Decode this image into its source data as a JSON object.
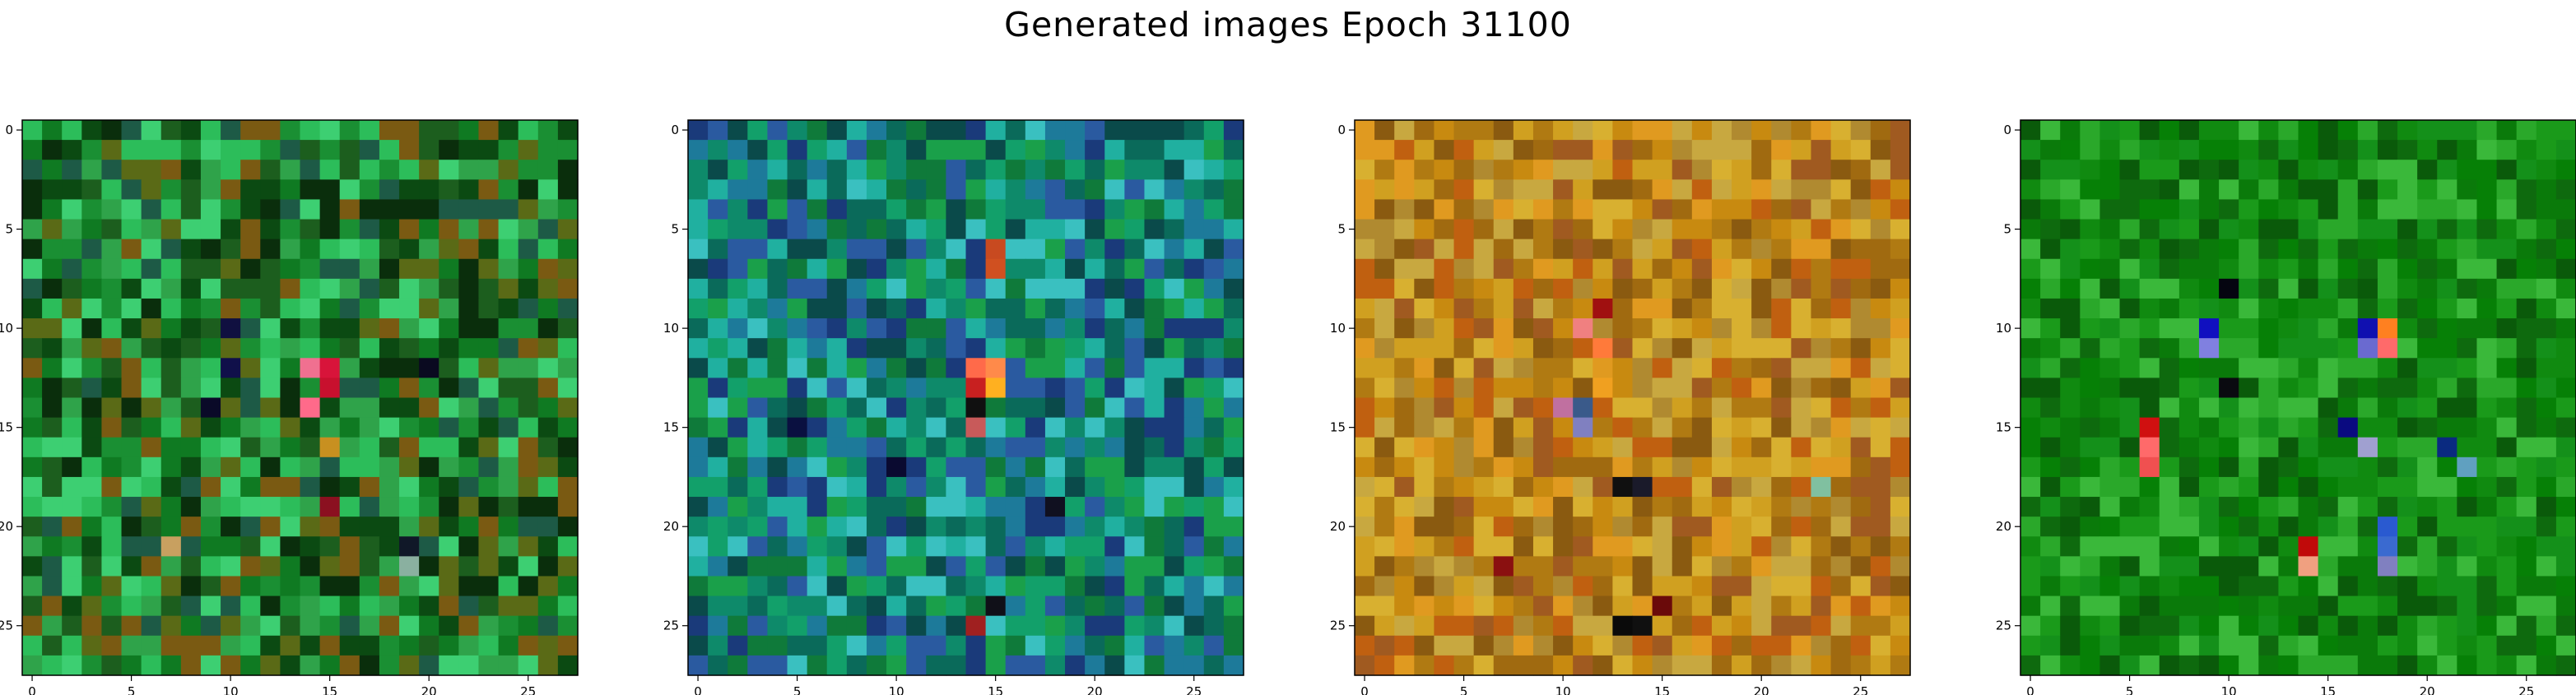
{
  "figure": {
    "title": "Generated images Epoch 31100"
  },
  "chart_data": {
    "type": "heatmap",
    "title": "Generated images Epoch 31100",
    "grid": false,
    "panels": [
      {
        "name": "",
        "xlim": [
          -0.5,
          27.5
        ],
        "ylim": [
          27.5,
          -0.5
        ],
        "xticks": [
          0,
          5,
          10,
          15,
          20,
          25
        ],
        "yticks": [
          0,
          5,
          10,
          15,
          20,
          25
        ],
        "palette": [
          "#0b4a12",
          "#0f7a22",
          "#1a8f33",
          "#2fa34a",
          "#2cbd5a",
          "#3dcf72",
          "#0a2e0c",
          "#1c5e1e",
          "#5a6a16",
          "#7a5a12",
          "#1d5a46"
        ],
        "highlights": [
          {
            "x": 15,
            "y": 12,
            "color": "#d8143a"
          },
          {
            "x": 15,
            "y": 13,
            "color": "#c8102e"
          },
          {
            "x": 14,
            "y": 12,
            "color": "#f07090"
          },
          {
            "x": 14,
            "y": 14,
            "color": "#ff6a8a"
          },
          {
            "x": 15,
            "y": 19,
            "color": "#8b1020"
          },
          {
            "x": 9,
            "y": 14,
            "color": "#0a0a28"
          },
          {
            "x": 10,
            "y": 12,
            "color": "#10104a"
          },
          {
            "x": 19,
            "y": 21,
            "color": "#101828"
          },
          {
            "x": 7,
            "y": 21,
            "color": "#c8a060"
          },
          {
            "x": 10,
            "y": 10,
            "color": "#101040"
          },
          {
            "x": 20,
            "y": 12,
            "color": "#0a0a20"
          },
          {
            "x": 15,
            "y": 16,
            "color": "#c89020"
          },
          {
            "x": 19,
            "y": 22,
            "color": "#8ab0a0"
          }
        ]
      },
      {
        "name": "",
        "xlim": [
          -0.5,
          27.5
        ],
        "ylim": [
          27.5,
          -0.5
        ],
        "xticks": [
          0,
          5,
          10,
          15,
          20,
          25
        ],
        "yticks": [
          0,
          5,
          10,
          15,
          20,
          25
        ],
        "palette": [
          "#0a6a5a",
          "#0e8a6a",
          "#12a06a",
          "#1d7a9a",
          "#2a5aa0",
          "#1a3a7a",
          "#20b0a0",
          "#0a4a4a",
          "#3ac0c0",
          "#0f7a3a",
          "#1aa04a"
        ],
        "highlights": [
          {
            "x": 15,
            "y": 12,
            "color": "#ff8a4a"
          },
          {
            "x": 14,
            "y": 12,
            "color": "#ff6a4a"
          },
          {
            "x": 15,
            "y": 13,
            "color": "#ffb020"
          },
          {
            "x": 14,
            "y": 13,
            "color": "#c82020"
          },
          {
            "x": 14,
            "y": 14,
            "color": "#101010"
          },
          {
            "x": 15,
            "y": 6,
            "color": "#c84a20"
          },
          {
            "x": 15,
            "y": 7,
            "color": "#d05020"
          },
          {
            "x": 14,
            "y": 15,
            "color": "#c85a5a"
          },
          {
            "x": 18,
            "y": 19,
            "color": "#101020"
          },
          {
            "x": 15,
            "y": 24,
            "color": "#101018"
          },
          {
            "x": 14,
            "y": 25,
            "color": "#a02020"
          },
          {
            "x": 10,
            "y": 17,
            "color": "#0a0a30"
          },
          {
            "x": 5,
            "y": 15,
            "color": "#0a1040"
          }
        ]
      },
      {
        "name": "",
        "xlim": [
          -0.5,
          27.5
        ],
        "ylim": [
          27.5,
          -0.5
        ],
        "xticks": [
          0,
          5,
          10,
          15,
          20,
          25
        ],
        "yticks": [
          0,
          5,
          10,
          15,
          20,
          25
        ],
        "palette": [
          "#d0a020",
          "#c88a10",
          "#b07a12",
          "#a06a10",
          "#d8b030",
          "#c06010",
          "#e09a20",
          "#8a5a10",
          "#b08a30",
          "#c8a840",
          "#a05a20"
        ],
        "highlights": [
          {
            "x": 11,
            "y": 10,
            "color": "#f08080"
          },
          {
            "x": 12,
            "y": 11,
            "color": "#ff7a3a"
          },
          {
            "x": 11,
            "y": 14,
            "color": "#3a5a8a"
          },
          {
            "x": 10,
            "y": 14,
            "color": "#c070a0"
          },
          {
            "x": 11,
            "y": 15,
            "color": "#8080c0"
          },
          {
            "x": 12,
            "y": 9,
            "color": "#a01010"
          },
          {
            "x": 13,
            "y": 18,
            "color": "#101010"
          },
          {
            "x": 14,
            "y": 18,
            "color": "#1a1a2a"
          },
          {
            "x": 13,
            "y": 25,
            "color": "#0a0a0a"
          },
          {
            "x": 14,
            "y": 25,
            "color": "#101010"
          },
          {
            "x": 15,
            "y": 24,
            "color": "#6a0a0a"
          },
          {
            "x": 7,
            "y": 22,
            "color": "#8a1010"
          },
          {
            "x": 23,
            "y": 18,
            "color": "#80c0a0"
          },
          {
            "x": 12,
            "y": 13,
            "color": "#f0a020"
          }
        ]
      },
      {
        "name": "",
        "xlim": [
          -0.5,
          27.5
        ],
        "ylim": [
          27.5,
          -0.5
        ],
        "xticks": [
          0,
          5,
          10,
          15,
          20,
          25
        ],
        "yticks": [
          0,
          5,
          10,
          15,
          20,
          25
        ],
        "palette": [
          "#0a7a0a",
          "#108a10",
          "#0e6a0e",
          "#1a9a1a",
          "#2aa82a",
          "#0a5a0a",
          "#068006",
          "#14901a",
          "#3ab83a"
        ],
        "highlights": [
          {
            "x": 9,
            "y": 10,
            "color": "#1010c0"
          },
          {
            "x": 9,
            "y": 11,
            "color": "#8080e0"
          },
          {
            "x": 17,
            "y": 10,
            "color": "#1010b0"
          },
          {
            "x": 17,
            "y": 11,
            "color": "#6a6ad0"
          },
          {
            "x": 18,
            "y": 10,
            "color": "#ff8020"
          },
          {
            "x": 18,
            "y": 11,
            "color": "#ff6a6a"
          },
          {
            "x": 6,
            "y": 16,
            "color": "#ff6a6a"
          },
          {
            "x": 6,
            "y": 17,
            "color": "#f05050"
          },
          {
            "x": 6,
            "y": 15,
            "color": "#d01010"
          },
          {
            "x": 16,
            "y": 15,
            "color": "#0a0a80"
          },
          {
            "x": 17,
            "y": 16,
            "color": "#a0a0d0"
          },
          {
            "x": 14,
            "y": 21,
            "color": "#c00a0a"
          },
          {
            "x": 14,
            "y": 22,
            "color": "#f0a080"
          },
          {
            "x": 18,
            "y": 20,
            "color": "#2a5ad0"
          },
          {
            "x": 18,
            "y": 21,
            "color": "#3a6ad0"
          },
          {
            "x": 18,
            "y": 22,
            "color": "#8080c0"
          },
          {
            "x": 21,
            "y": 16,
            "color": "#0a2a80"
          },
          {
            "x": 22,
            "y": 17,
            "color": "#60a0c0"
          },
          {
            "x": 10,
            "y": 13,
            "color": "#0a0a10"
          },
          {
            "x": 10,
            "y": 8,
            "color": "#050510"
          }
        ]
      }
    ]
  }
}
